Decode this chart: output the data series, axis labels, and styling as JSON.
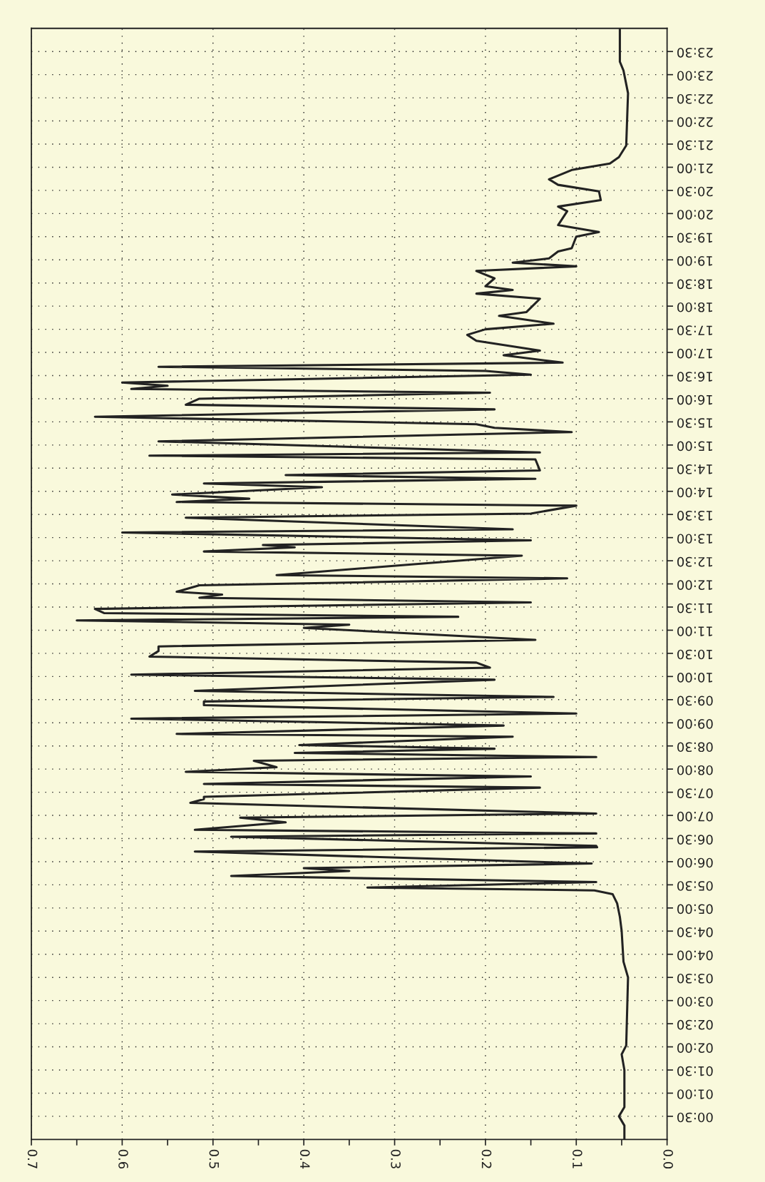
{
  "chart_data": {
    "type": "line",
    "orientation": "horizontal",
    "color": "#222222",
    "grid": true,
    "line_style": "solid",
    "marker": "none",
    "x": [
      0.03,
      0.3,
      0.5,
      0.7,
      1.5,
      1.84,
      2.03,
      3.5,
      3.84,
      4.5,
      4.81,
      5.1,
      5.3,
      5.38,
      5.44,
      5.56,
      5.69,
      5.8,
      5.86,
      5.96,
      6.22,
      6.31,
      6.34,
      6.54,
      6.61,
      6.69,
      6.85,
      6.95,
      7.04,
      7.27,
      7.35,
      7.4,
      7.6,
      7.68,
      7.84,
      7.94,
      8.04,
      8.18,
      8.26,
      8.35,
      8.44,
      8.52,
      8.7,
      8.76,
      8.94,
      9.09,
      9.2,
      9.38,
      9.46,
      9.56,
      9.69,
      9.93,
      10.04,
      10.19,
      10.3,
      10.43,
      10.55,
      10.65,
      10.79,
      11.05,
      11.12,
      11.21,
      11.29,
      11.37,
      11.46,
      11.6,
      11.7,
      11.77,
      11.83,
      11.97,
      12.12,
      12.19,
      12.61,
      12.7,
      12.79,
      12.84,
      12.94,
      13.11,
      13.18,
      13.43,
      13.52,
      13.69,
      13.77,
      13.84,
      13.93,
      14.09,
      14.17,
      14.27,
      14.35,
      14.45,
      14.69,
      14.77,
      14.84,
      15.08,
      15.28,
      15.37,
      15.45,
      15.61,
      15.77,
      15.87,
      16.0,
      16.13,
      16.21,
      16.28,
      16.35,
      16.52,
      16.6,
      16.69,
      16.78,
      16.94,
      17.04,
      17.25,
      17.38,
      17.5,
      17.62,
      17.79,
      17.87,
      18.16,
      18.27,
      18.35,
      18.43,
      18.6,
      18.76,
      18.86,
      18.94,
      19.03,
      19.18,
      19.25,
      19.5,
      19.6,
      19.75,
      20.05,
      20.15,
      20.29,
      20.48,
      20.62,
      20.74,
      20.94,
      21.08,
      21.22,
      21.47,
      22.6,
      23.09,
      23.28,
      23.97
    ],
    "values": [
      0.047,
      0.047,
      0.053,
      0.047,
      0.047,
      0.05,
      0.045,
      0.043,
      0.048,
      0.05,
      0.052,
      0.055,
      0.06,
      0.08,
      0.33,
      0.078,
      0.48,
      0.35,
      0.4,
      0.083,
      0.52,
      0.077,
      0.078,
      0.48,
      0.078,
      0.52,
      0.42,
      0.47,
      0.078,
      0.525,
      0.51,
      0.51,
      0.14,
      0.51,
      0.15,
      0.53,
      0.43,
      0.455,
      0.078,
      0.41,
      0.19,
      0.405,
      0.17,
      0.54,
      0.18,
      0.59,
      0.1,
      0.51,
      0.51,
      0.125,
      0.52,
      0.19,
      0.59,
      0.195,
      0.21,
      0.57,
      0.56,
      0.56,
      0.145,
      0.4,
      0.35,
      0.65,
      0.23,
      0.62,
      0.63,
      0.15,
      0.515,
      0.49,
      0.54,
      0.515,
      0.11,
      0.43,
      0.16,
      0.51,
      0.41,
      0.445,
      0.15,
      0.6,
      0.17,
      0.53,
      0.15,
      0.1,
      0.54,
      0.46,
      0.545,
      0.38,
      0.51,
      0.145,
      0.42,
      0.14,
      0.145,
      0.57,
      0.14,
      0.56,
      0.105,
      0.19,
      0.21,
      0.63,
      0.19,
      0.53,
      0.515,
      0.195,
      0.59,
      0.55,
      0.6,
      0.15,
      0.2,
      0.56,
      0.115,
      0.18,
      0.14,
      0.21,
      0.22,
      0.2,
      0.125,
      0.185,
      0.155,
      0.14,
      0.21,
      0.17,
      0.2,
      0.19,
      0.21,
      0.1,
      0.17,
      0.13,
      0.12,
      0.105,
      0.1,
      0.075,
      0.12,
      0.11,
      0.12,
      0.073,
      0.075,
      0.12,
      0.13,
      0.105,
      0.063,
      0.053,
      0.045,
      0.043,
      0.048,
      0.052,
      0.052
    ],
    "xlim": [
      0.7,
      0.0
    ],
    "xticks": [
      0.7,
      {
        "value": 0.65,
        "label": null
      },
      0.6,
      {
        "value": 0.55,
        "label": null
      },
      0.5,
      {
        "value": 0.45,
        "label": null
      },
      0.4,
      {
        "value": 0.35,
        "label": null
      },
      0.3,
      {
        "value": 0.25,
        "label": null
      },
      0.2,
      {
        "value": 0.15,
        "label": null
      },
      0.1,
      {
        "value": 0.05,
        "label": null
      },
      {
        "value": 0,
        "label": "0.0"
      }
    ],
    "ylim": [
      0,
      24
    ],
    "yticks": [
      {
        "value": 0.5,
        "label": "00:30"
      },
      {
        "value": 1,
        "label": "01:00"
      },
      {
        "value": 1.5,
        "label": "01:30"
      },
      {
        "value": 2,
        "label": "02:00"
      },
      {
        "value": 2.5,
        "label": "02:30"
      },
      {
        "value": 3,
        "label": "03:00"
      },
      {
        "value": 3.5,
        "label": "03:30"
      },
      {
        "value": 4,
        "label": "04:00"
      },
      {
        "value": 4.5,
        "label": "04:30"
      },
      {
        "value": 5,
        "label": "05:00"
      },
      {
        "value": 5.5,
        "label": "05:30"
      },
      {
        "value": 6,
        "label": "06:00"
      },
      {
        "value": 6.5,
        "label": "06:30"
      },
      {
        "value": 7,
        "label": "07:00"
      },
      {
        "value": 7.5,
        "label": "07:30"
      },
      {
        "value": 8,
        "label": "08:00"
      },
      {
        "value": 8.5,
        "label": "08:30"
      },
      {
        "value": 9,
        "label": "09:00"
      },
      {
        "value": 9.5,
        "label": "09:30"
      },
      {
        "value": 10,
        "label": "10:00"
      },
      {
        "value": 10.5,
        "label": "10:30"
      },
      {
        "value": 11,
        "label": "11:00"
      },
      {
        "value": 11.5,
        "label": "11:30"
      },
      {
        "value": 12,
        "label": "12:00"
      },
      {
        "value": 12.5,
        "label": "12:30"
      },
      {
        "value": 13,
        "label": "13:00"
      },
      {
        "value": 13.5,
        "label": "13:30"
      },
      {
        "value": 14,
        "label": "14:00"
      },
      {
        "value": 14.5,
        "label": "14:30"
      },
      {
        "value": 15,
        "label": "15:00"
      },
      {
        "value": 15.5,
        "label": "15:30"
      },
      {
        "value": 16,
        "label": "16:00"
      },
      {
        "value": 16.5,
        "label": "16:30"
      },
      {
        "value": 17,
        "label": "17:00"
      },
      {
        "value": 17.5,
        "label": "17:30"
      },
      {
        "value": 18,
        "label": "18:00"
      },
      {
        "value": 18.5,
        "label": "18:30"
      },
      {
        "value": 19,
        "label": "19:00"
      },
      {
        "value": 19.5,
        "label": "19:30"
      },
      {
        "value": 20,
        "label": "20:00"
      },
      {
        "value": 20.5,
        "label": "20:30"
      },
      {
        "value": 21,
        "label": "21:00"
      },
      {
        "value": 21.5,
        "label": "21:30"
      },
      {
        "value": 22,
        "label": "22:00"
      },
      {
        "value": 22.5,
        "label": "22:30"
      },
      {
        "value": 23,
        "label": "23:00"
      },
      {
        "value": 23.5,
        "label": "23:30"
      }
    ]
  }
}
